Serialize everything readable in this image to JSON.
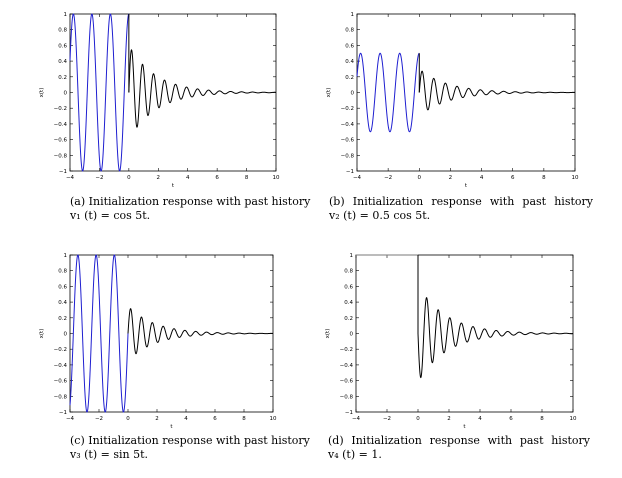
{
  "chart_data": [
    {
      "type": "line",
      "id": "a",
      "caption_line1": "(a) Initialization response with past history",
      "caption_line2": "v₁ (t) = cos 5t.",
      "xlabel": "t",
      "ylabel": "x(t)",
      "xlim": [
        -4,
        10
      ],
      "ylim": [
        -1,
        1
      ],
      "xticks": [
        "−4",
        "−2",
        "0",
        "2",
        "4",
        "6",
        "8",
        "10"
      ],
      "yticks": [
        "−1",
        "−0.8",
        "−0.6",
        "−0.4",
        "−0.2",
        "0",
        "0.2",
        "0.4",
        "0.6",
        "0.8",
        "1"
      ],
      "history": {
        "kind": "cos",
        "amplitude": 1.0,
        "omega": 5,
        "x": [
          -4,
          0
        ],
        "color": "#1f1fd0"
      },
      "response": {
        "amplitude": 0.6,
        "decay": 0.55,
        "omega": 8.4,
        "x": [
          0,
          10
        ],
        "color": "#000000"
      }
    },
    {
      "type": "line",
      "id": "b",
      "caption_line1": "(b) Initialization response with past history",
      "caption_line2": "v₂ (t) = 0.5 cos 5t.",
      "xlabel": "t",
      "ylabel": "x(t)",
      "xlim": [
        -4,
        10
      ],
      "ylim": [
        -1,
        1
      ],
      "xticks": [
        "−4",
        "−2",
        "0",
        "2",
        "4",
        "6",
        "8",
        "10"
      ],
      "yticks": [
        "−1",
        "−0.8",
        "−0.6",
        "−0.4",
        "−0.2",
        "0",
        "0.2",
        "0.4",
        "0.6",
        "0.8",
        "1"
      ],
      "history": {
        "kind": "cos",
        "amplitude": 0.5,
        "omega": 5,
        "x": [
          -4,
          0
        ],
        "color": "#1f1fd0"
      },
      "response": {
        "amplitude": 0.3,
        "decay": 0.55,
        "omega": 8.4,
        "x": [
          0,
          10
        ],
        "color": "#000000"
      }
    },
    {
      "type": "line",
      "id": "c",
      "caption_line1": "(c) Initialization response with past history",
      "caption_line2": "v₃ (t) = sin 5t.",
      "xlabel": "t",
      "ylabel": "x(t)",
      "xlim": [
        -4,
        10
      ],
      "ylim": [
        -1,
        1
      ],
      "xticks": [
        "−4",
        "−2",
        "0",
        "2",
        "4",
        "6",
        "8",
        "10"
      ],
      "yticks": [
        "−1",
        "−0.8",
        "−0.6",
        "−0.4",
        "−0.2",
        "0",
        "0.2",
        "0.4",
        "0.6",
        "0.8",
        "1"
      ],
      "history": {
        "kind": "sin",
        "amplitude": 1.0,
        "omega": 5,
        "x": [
          -4,
          0
        ],
        "color": "#1f1fd0"
      },
      "response": {
        "amplitude": 0.35,
        "decay": 0.55,
        "omega": 8.4,
        "x": [
          0,
          10
        ],
        "color": "#000000"
      }
    },
    {
      "type": "line",
      "id": "d",
      "caption_line1": "(d) Initialization response with past history",
      "caption_line2": "v₄ (t) = 1.",
      "xlabel": "t",
      "ylabel": "x(t)",
      "xlim": [
        -4,
        10
      ],
      "ylim": [
        -1,
        1
      ],
      "xticks": [
        "−4",
        "−2",
        "0",
        "2",
        "4",
        "6",
        "8",
        "10"
      ],
      "yticks": [
        "−1",
        "−0.8",
        "−0.6",
        "−0.4",
        "−0.2",
        "0",
        "0.2",
        "0.4",
        "0.6",
        "0.8",
        "1"
      ],
      "history": {
        "kind": "const",
        "amplitude": 1.0,
        "omega": 0,
        "x": [
          -4,
          0
        ],
        "color": "#7a7a7a"
      },
      "response": {
        "amplitude": -0.62,
        "decay": 0.55,
        "omega": 8.4,
        "x": [
          0,
          10
        ],
        "color": "#000000"
      }
    }
  ]
}
